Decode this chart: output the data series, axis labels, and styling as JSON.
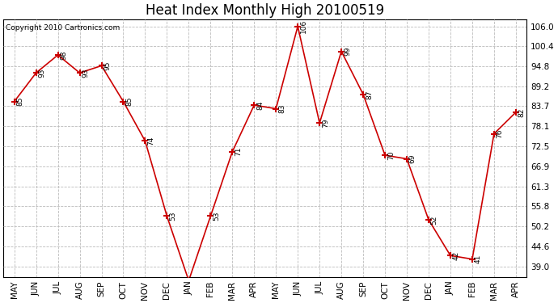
{
  "title": "Heat Index Monthly High 20100519",
  "copyright": "Copyright 2010 Cartronics.com",
  "categories": [
    "MAY",
    "JUN",
    "JUL",
    "AUG",
    "SEP",
    "OCT",
    "NOV",
    "DEC",
    "JAN",
    "FEB",
    "MAR",
    "APR",
    "MAY",
    "JUN",
    "JUL",
    "AUG",
    "SEP",
    "OCT",
    "NOV",
    "DEC",
    "JAN",
    "FEB",
    "MAR",
    "APR"
  ],
  "values": [
    85,
    93,
    98,
    93,
    95,
    85,
    74,
    53,
    35,
    53,
    71,
    84,
    83,
    106,
    79,
    99,
    87,
    70,
    69,
    52,
    42,
    41,
    76,
    82
  ],
  "line_color": "#cc0000",
  "marker_color": "#cc0000",
  "background_color": "#ffffff",
  "grid_color": "#bbbbbb",
  "yticks": [
    39.0,
    44.6,
    50.2,
    55.8,
    61.3,
    66.9,
    72.5,
    78.1,
    83.7,
    89.2,
    94.8,
    100.4,
    106.0
  ],
  "ylim_min": 36.0,
  "ylim_max": 108.0,
  "title_fontsize": 12,
  "annotation_fontsize": 6.5,
  "tick_fontsize": 7.5,
  "copyright_fontsize": 6.5
}
